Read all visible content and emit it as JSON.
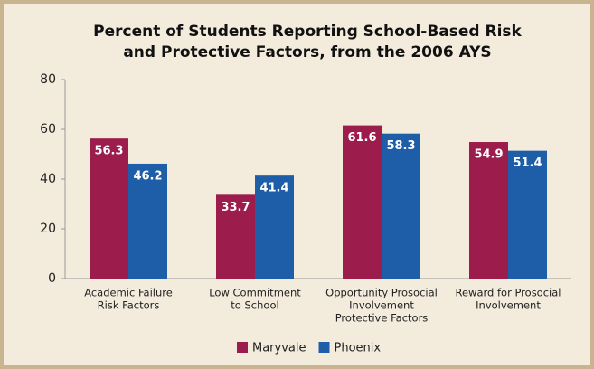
{
  "chart_data": {
    "type": "bar",
    "title": [
      "Percent of Students Reporting School-Based Risk",
      "and Protective Factors, from the 2006 AYS"
    ],
    "categories": [
      [
        "Academic Failure",
        "Risk Factors"
      ],
      [
        "Low Commitment",
        "to School"
      ],
      [
        "Opportunity Prosocial",
        "Involvement",
        "Protective Factors"
      ],
      [
        "Reward for Prosocial",
        "Involvement"
      ]
    ],
    "series": [
      {
        "name": "Maryvale",
        "color": "#9c1c4b",
        "values": [
          56.3,
          33.7,
          61.6,
          54.9
        ]
      },
      {
        "name": "Phoenix",
        "color": "#1e5ea8",
        "values": [
          46.2,
          41.4,
          58.3,
          51.4
        ]
      }
    ],
    "ylim": [
      0,
      80
    ],
    "yticks": [
      0,
      20,
      40,
      60,
      80
    ],
    "grid": false
  }
}
